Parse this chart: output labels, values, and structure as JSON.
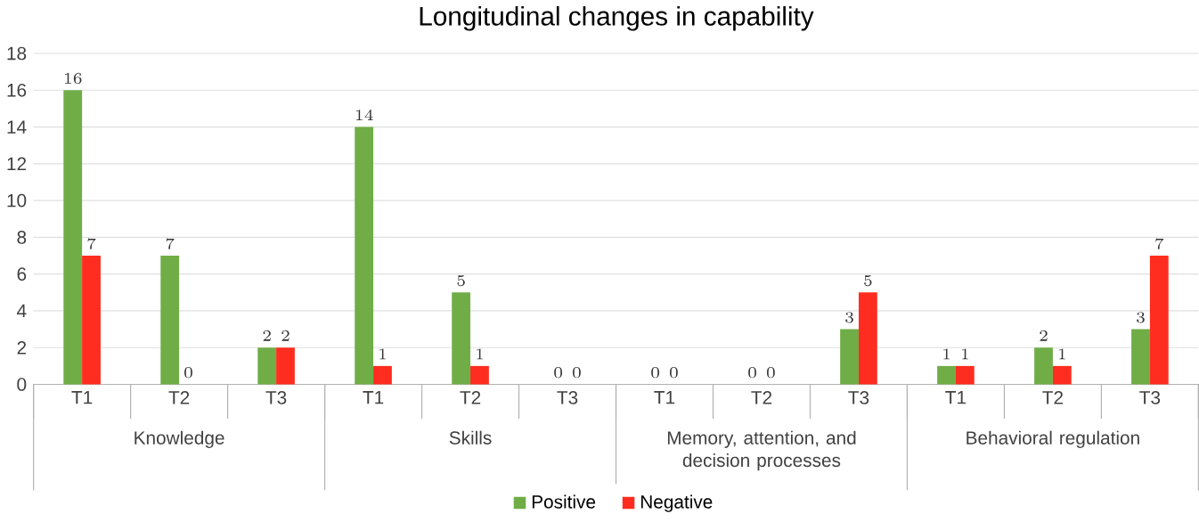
{
  "chart_data": {
    "type": "bar",
    "title": "Longitudinal changes in capability",
    "categories": [
      "T1",
      "T2",
      "T3",
      "T1",
      "T2",
      "T3",
      "T1",
      "T2",
      "T3",
      "T1",
      "T2",
      "T3"
    ],
    "annotations": [
      "Knowledge",
      "Skills",
      "Memory, attention, and decision processes",
      "Behavioral regulation"
    ],
    "series": [
      {
        "name": "Positive",
        "color": "#70ad47",
        "values": [
          16,
          7,
          2,
          14,
          5,
          0,
          0,
          0,
          3,
          1,
          2,
          3
        ]
      },
      {
        "name": "Negative",
        "color": "#ff2d1f",
        "values": [
          7,
          0,
          2,
          1,
          1,
          0,
          0,
          0,
          5,
          1,
          1,
          7
        ]
      }
    ],
    "ylim": [
      0,
      18
    ],
    "yticks": [
      0,
      2,
      4,
      6,
      8,
      10,
      12,
      14,
      16,
      18
    ],
    "grid": "y",
    "legend": "bottom",
    "data_labels": true
  }
}
